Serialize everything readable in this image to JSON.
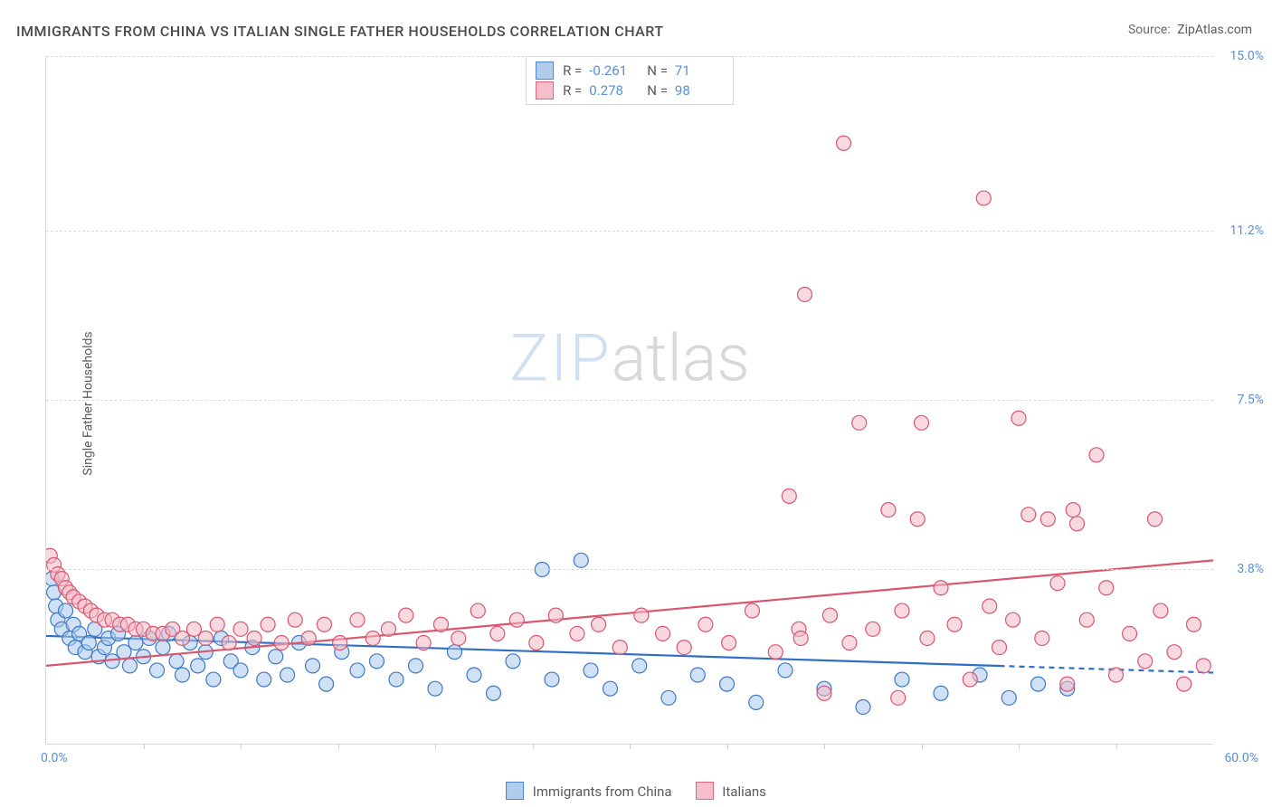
{
  "title": "IMMIGRANTS FROM CHINA VS ITALIAN SINGLE FATHER HOUSEHOLDS CORRELATION CHART",
  "source_label": "Source:",
  "source_value": "ZipAtlas.com",
  "ylabel": "Single Father Households",
  "watermark": {
    "part1": "ZIP",
    "part2": "atlas"
  },
  "chart": {
    "type": "scatter",
    "xlim": [
      0,
      60
    ],
    "ylim": [
      0,
      15
    ],
    "x_axis_min_label": "0.0%",
    "x_axis_max_label": "60.0%",
    "xtick_positions": [
      5,
      10,
      15,
      20,
      25,
      30,
      35,
      40,
      45,
      50,
      55
    ],
    "y_gridlines": [
      3.8,
      7.5,
      11.2,
      15.0
    ],
    "y_tick_labels": [
      "3.8%",
      "7.5%",
      "11.2%",
      "15.0%"
    ],
    "grid_color": "#dcdcdc",
    "axis_color": "#d9d9d9",
    "background_color": "#ffffff",
    "tick_label_color": "#5a8fd6",
    "marker_radius": 8,
    "marker_stroke_width": 1.2,
    "series": [
      {
        "id": "china",
        "label": "Immigrants from China",
        "fill": "#a9c8ec",
        "stroke": "#3d78c6",
        "fill_opacity": 0.55,
        "R": "-0.261",
        "N": "71",
        "trend": {
          "x1": 0,
          "y1": 2.35,
          "x2": 60,
          "y2": 1.55,
          "solid_until_x": 49,
          "stroke": "#2f6fc2",
          "width": 2.2
        },
        "points": [
          [
            0.3,
            3.6
          ],
          [
            0.4,
            3.3
          ],
          [
            0.5,
            3.0
          ],
          [
            0.6,
            2.7
          ],
          [
            0.8,
            2.5
          ],
          [
            1.0,
            2.9
          ],
          [
            1.2,
            2.3
          ],
          [
            1.4,
            2.6
          ],
          [
            1.5,
            2.1
          ],
          [
            1.7,
            2.4
          ],
          [
            2.0,
            2.0
          ],
          [
            2.2,
            2.2
          ],
          [
            2.5,
            2.5
          ],
          [
            2.7,
            1.9
          ],
          [
            3.0,
            2.1
          ],
          [
            3.2,
            2.3
          ],
          [
            3.4,
            1.8
          ],
          [
            3.7,
            2.4
          ],
          [
            4.0,
            2.0
          ],
          [
            4.3,
            1.7
          ],
          [
            4.6,
            2.2
          ],
          [
            5.0,
            1.9
          ],
          [
            5.3,
            2.3
          ],
          [
            5.7,
            1.6
          ],
          [
            6.0,
            2.1
          ],
          [
            6.3,
            2.4
          ],
          [
            6.7,
            1.8
          ],
          [
            7.0,
            1.5
          ],
          [
            7.4,
            2.2
          ],
          [
            7.8,
            1.7
          ],
          [
            8.2,
            2.0
          ],
          [
            8.6,
            1.4
          ],
          [
            9.0,
            2.3
          ],
          [
            9.5,
            1.8
          ],
          [
            10.0,
            1.6
          ],
          [
            10.6,
            2.1
          ],
          [
            11.2,
            1.4
          ],
          [
            11.8,
            1.9
          ],
          [
            12.4,
            1.5
          ],
          [
            13.0,
            2.2
          ],
          [
            13.7,
            1.7
          ],
          [
            14.4,
            1.3
          ],
          [
            15.2,
            2.0
          ],
          [
            16.0,
            1.6
          ],
          [
            17.0,
            1.8
          ],
          [
            18.0,
            1.4
          ],
          [
            19.0,
            1.7
          ],
          [
            20.0,
            1.2
          ],
          [
            21.0,
            2.0
          ],
          [
            22.0,
            1.5
          ],
          [
            23.0,
            1.1
          ],
          [
            24.0,
            1.8
          ],
          [
            25.5,
            3.8
          ],
          [
            26.0,
            1.4
          ],
          [
            27.5,
            4.0
          ],
          [
            28.0,
            1.6
          ],
          [
            29.0,
            1.2
          ],
          [
            30.5,
            1.7
          ],
          [
            32.0,
            1.0
          ],
          [
            33.5,
            1.5
          ],
          [
            35.0,
            1.3
          ],
          [
            36.5,
            0.9
          ],
          [
            38.0,
            1.6
          ],
          [
            40.0,
            1.2
          ],
          [
            42.0,
            0.8
          ],
          [
            44.0,
            1.4
          ],
          [
            46.0,
            1.1
          ],
          [
            48.0,
            1.5
          ],
          [
            49.5,
            1.0
          ],
          [
            51.0,
            1.3
          ],
          [
            52.5,
            1.2
          ]
        ]
      },
      {
        "id": "italians",
        "label": "Italians",
        "fill": "#f3b9c6",
        "stroke": "#d9566f",
        "fill_opacity": 0.55,
        "R": "0.278",
        "N": "98",
        "trend": {
          "x1": 0,
          "y1": 1.7,
          "x2": 60,
          "y2": 4.0,
          "solid_until_x": 60,
          "stroke": "#d9566f",
          "width": 2.2
        },
        "points": [
          [
            0.2,
            4.1
          ],
          [
            0.4,
            3.9
          ],
          [
            0.6,
            3.7
          ],
          [
            0.8,
            3.6
          ],
          [
            1.0,
            3.4
          ],
          [
            1.2,
            3.3
          ],
          [
            1.4,
            3.2
          ],
          [
            1.7,
            3.1
          ],
          [
            2.0,
            3.0
          ],
          [
            2.3,
            2.9
          ],
          [
            2.6,
            2.8
          ],
          [
            3.0,
            2.7
          ],
          [
            3.4,
            2.7
          ],
          [
            3.8,
            2.6
          ],
          [
            4.2,
            2.6
          ],
          [
            4.6,
            2.5
          ],
          [
            5.0,
            2.5
          ],
          [
            5.5,
            2.4
          ],
          [
            6.0,
            2.4
          ],
          [
            6.5,
            2.5
          ],
          [
            7.0,
            2.3
          ],
          [
            7.6,
            2.5
          ],
          [
            8.2,
            2.3
          ],
          [
            8.8,
            2.6
          ],
          [
            9.4,
            2.2
          ],
          [
            10.0,
            2.5
          ],
          [
            10.7,
            2.3
          ],
          [
            11.4,
            2.6
          ],
          [
            12.1,
            2.2
          ],
          [
            12.8,
            2.7
          ],
          [
            13.5,
            2.3
          ],
          [
            14.3,
            2.6
          ],
          [
            15.1,
            2.2
          ],
          [
            16.0,
            2.7
          ],
          [
            16.8,
            2.3
          ],
          [
            17.6,
            2.5
          ],
          [
            18.5,
            2.8
          ],
          [
            19.4,
            2.2
          ],
          [
            20.3,
            2.6
          ],
          [
            21.2,
            2.3
          ],
          [
            22.2,
            2.9
          ],
          [
            23.2,
            2.4
          ],
          [
            24.2,
            2.7
          ],
          [
            25.2,
            2.2
          ],
          [
            26.2,
            2.8
          ],
          [
            27.3,
            2.4
          ],
          [
            28.4,
            2.6
          ],
          [
            29.5,
            2.1
          ],
          [
            30.6,
            2.8
          ],
          [
            31.7,
            2.4
          ],
          [
            32.8,
            2.1
          ],
          [
            33.9,
            2.6
          ],
          [
            35.1,
            2.2
          ],
          [
            36.3,
            2.9
          ],
          [
            37.5,
            2.0
          ],
          [
            38.2,
            5.4
          ],
          [
            38.7,
            2.5
          ],
          [
            39.0,
            9.8
          ],
          [
            40.0,
            1.1
          ],
          [
            40.3,
            2.8
          ],
          [
            41.0,
            13.1
          ],
          [
            41.3,
            2.2
          ],
          [
            41.8,
            7.0
          ],
          [
            42.5,
            2.5
          ],
          [
            43.3,
            5.1
          ],
          [
            43.8,
            1.0
          ],
          [
            44.0,
            2.9
          ],
          [
            45.0,
            7.0
          ],
          [
            45.3,
            2.3
          ],
          [
            46.0,
            3.4
          ],
          [
            46.7,
            2.6
          ],
          [
            47.5,
            1.4
          ],
          [
            48.2,
            11.9
          ],
          [
            48.5,
            3.0
          ],
          [
            49.0,
            2.1
          ],
          [
            49.7,
            2.7
          ],
          [
            50.0,
            7.1
          ],
          [
            50.5,
            5.0
          ],
          [
            51.2,
            2.3
          ],
          [
            52.0,
            3.5
          ],
          [
            52.5,
            1.3
          ],
          [
            52.8,
            5.1
          ],
          [
            53.5,
            2.7
          ],
          [
            54.0,
            6.3
          ],
          [
            54.5,
            3.4
          ],
          [
            55.0,
            1.5
          ],
          [
            55.7,
            2.4
          ],
          [
            56.5,
            1.8
          ],
          [
            57.0,
            4.9
          ],
          [
            57.3,
            2.9
          ],
          [
            58.0,
            2.0
          ],
          [
            58.5,
            1.3
          ],
          [
            59.0,
            2.6
          ],
          [
            59.5,
            1.7
          ],
          [
            53.0,
            4.8
          ],
          [
            51.5,
            4.9
          ],
          [
            44.8,
            4.9
          ],
          [
            38.8,
            2.3
          ]
        ]
      }
    ]
  },
  "legend_top": {
    "r_label": "R =",
    "n_label": "N ="
  },
  "legend_bottom_labels": [
    "Immigrants from China",
    "Italians"
  ]
}
